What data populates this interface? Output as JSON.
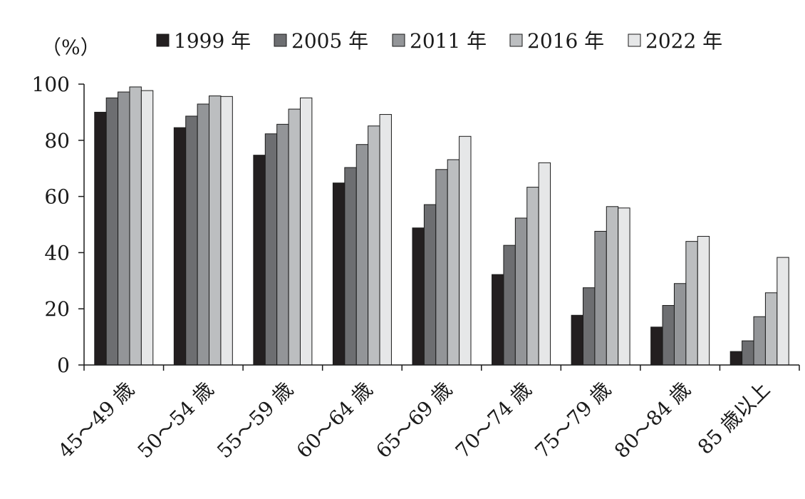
{
  "chart_data": {
    "type": "bar",
    "unit_label": "（%）",
    "categories": [
      "45～49 歳",
      "50～54 歳",
      "55～59 歳",
      "60～64 歳",
      "65～69 歳",
      "70～74 歳",
      "75～79 歳",
      "80～84 歳",
      "85 歳以上"
    ],
    "series": [
      {
        "name": "1999 年",
        "color": "#231f20",
        "values": [
          90.0,
          84.5,
          74.7,
          64.8,
          48.8,
          32.2,
          17.7,
          13.5,
          4.8
        ]
      },
      {
        "name": "2005 年",
        "color": "#6d6e71",
        "values": [
          95.1,
          88.6,
          82.3,
          70.3,
          57.1,
          42.6,
          27.5,
          21.2,
          8.6
        ]
      },
      {
        "name": "2011 年",
        "color": "#939598",
        "values": [
          97.2,
          92.9,
          85.7,
          78.5,
          69.6,
          52.3,
          47.6,
          29.0,
          17.2
        ]
      },
      {
        "name": "2016 年",
        "color": "#bcbec0",
        "values": [
          99.0,
          95.8,
          91.1,
          85.1,
          73.1,
          63.3,
          56.4,
          44.0,
          25.7
        ]
      },
      {
        "name": "2022 年",
        "color": "#e6e7e8",
        "values": [
          97.7,
          95.6,
          95.1,
          89.2,
          81.4,
          72.0,
          55.9,
          45.8,
          38.3
        ]
      }
    ],
    "ylim": [
      0,
      100
    ],
    "yticks": [
      0,
      20,
      40,
      60,
      80,
      100
    ],
    "legend_position": "top",
    "grid": false
  }
}
